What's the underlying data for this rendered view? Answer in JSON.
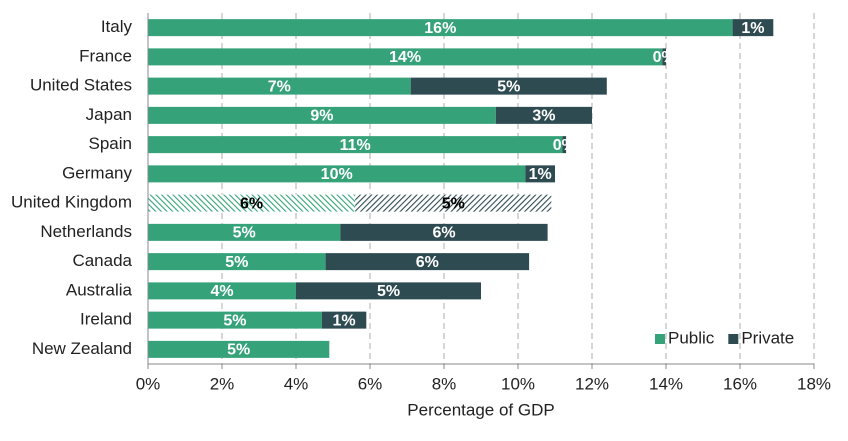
{
  "chart_data": {
    "type": "stacked_bar_horizontal",
    "categories": [
      "Italy",
      "France",
      "United States",
      "Japan",
      "Spain",
      "Germany",
      "United Kingdom",
      "Netherlands",
      "Canada",
      "Australia",
      "Ireland",
      "New Zealand"
    ],
    "series": [
      {
        "name": "Public",
        "color": "#35a27a",
        "values": [
          15.8,
          13.9,
          7.1,
          9.4,
          11.2,
          10.2,
          5.6,
          5.2,
          4.8,
          4.0,
          4.7,
          4.9
        ],
        "value_labels": [
          "16%",
          "14%",
          "7%",
          "9%",
          "11%",
          "10%",
          "6%",
          "5%",
          "5%",
          "4%",
          "5%",
          "5%"
        ]
      },
      {
        "name": "Private",
        "color": "#2f4b52",
        "values": [
          1.1,
          0.1,
          5.3,
          2.6,
          0.1,
          0.8,
          5.3,
          5.6,
          5.5,
          5.0,
          1.2,
          null
        ],
        "value_labels": [
          "1%",
          "0%",
          "5%",
          "3%",
          "0%",
          "1%",
          "5%",
          "6%",
          "6%",
          "5%",
          "1%",
          null
        ]
      }
    ],
    "hatched": [
      false,
      false,
      false,
      false,
      false,
      false,
      true,
      false,
      false,
      false,
      false,
      false
    ],
    "xlabel": "Percentage of GDP",
    "xlim": [
      0,
      18
    ],
    "xticks": [
      {
        "value": 0,
        "label": "0%"
      },
      {
        "value": 2,
        "label": "2%"
      },
      {
        "value": 4,
        "label": "4%"
      },
      {
        "value": 6,
        "label": "6%"
      },
      {
        "value": 8,
        "label": "8%"
      },
      {
        "value": 10,
        "label": "10%"
      },
      {
        "value": 12,
        "label": "12%"
      },
      {
        "value": 14,
        "label": "14%"
      },
      {
        "value": 16,
        "label": "16%"
      },
      {
        "value": 18,
        "label": "18%"
      }
    ],
    "grid": true,
    "legend": "lower right"
  }
}
